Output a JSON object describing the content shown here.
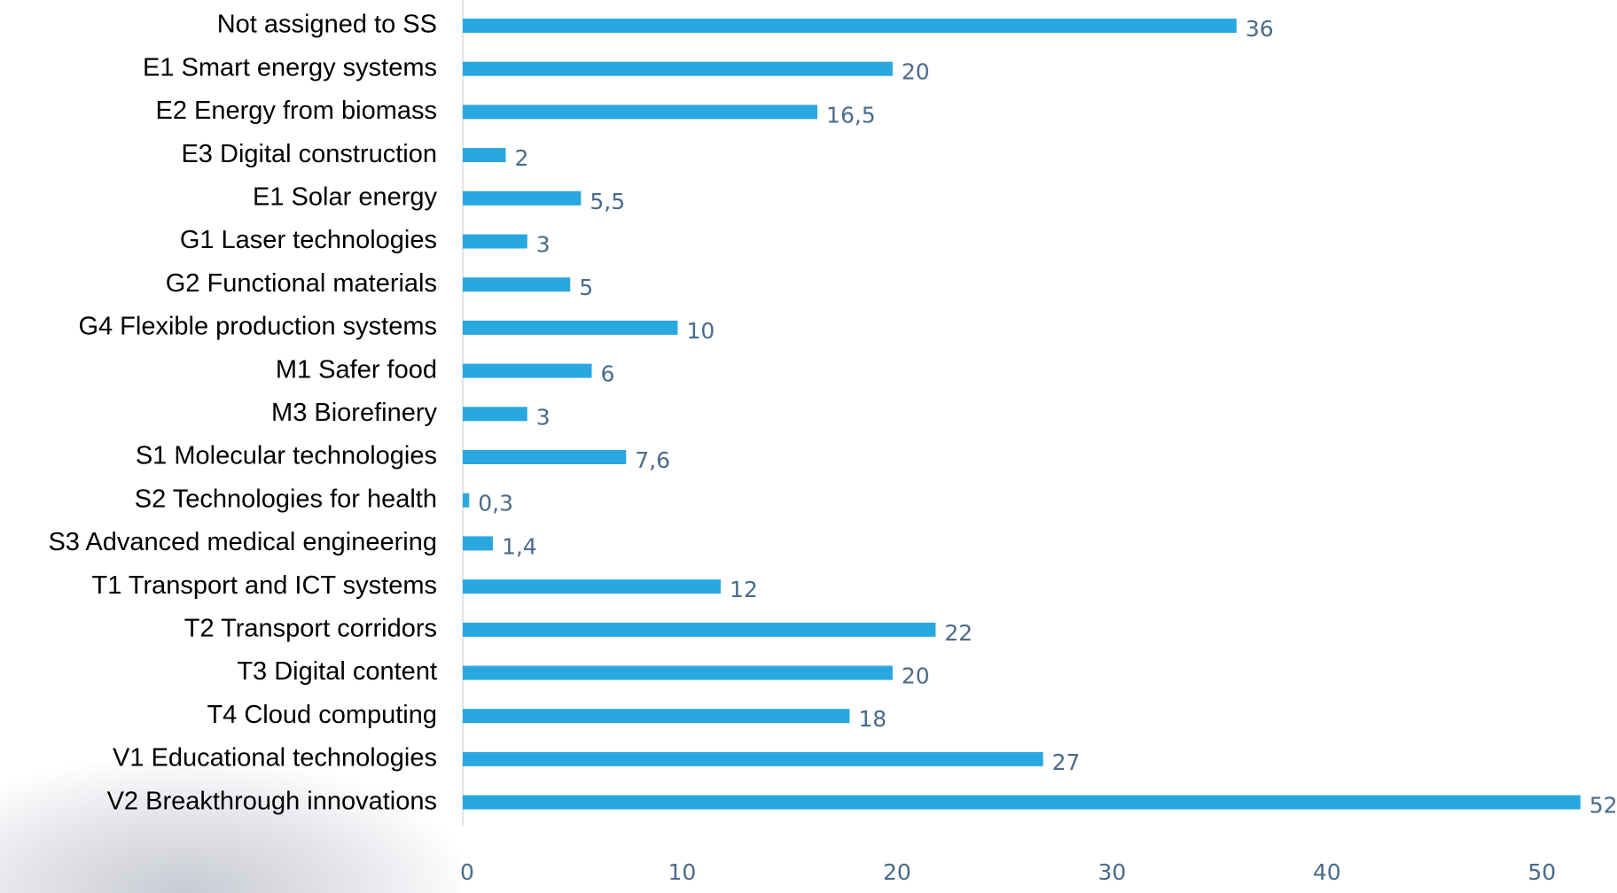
{
  "chart_data": {
    "type": "hbar",
    "categories": [
      "Not assigned to SS",
      "E1 Smart energy systems",
      "E2 Energy from biomass",
      "E3 Digital construction",
      "E1 Solar energy",
      "G1 Laser technologies",
      "G2 Functional materials",
      "G4 Flexible production systems",
      "M1 Safer food",
      "M3 Biorefinery",
      "S1 Molecular technologies",
      "S2 Technologies for health",
      "S3 Advanced medical engineering",
      "T1 Transport and ICT systems",
      "T2 Transport corridors",
      "T3 Digital content",
      "T4 Cloud computing",
      "V1 Educational technologies",
      "V2 Breakthrough innovations"
    ],
    "values": [
      36,
      20,
      16.5,
      2,
      5.5,
      3,
      5,
      10,
      6,
      3,
      7.6,
      0.3,
      1.4,
      12,
      22,
      20,
      18,
      27,
      52
    ],
    "value_labels": [
      "36",
      "20",
      "16,5",
      "2",
      "5,5",
      "3",
      "5",
      "10",
      "6",
      "3",
      "7,6",
      "0,3",
      "1,4",
      "12",
      "22",
      "20",
      "18",
      "27",
      "52"
    ],
    "color": "#29a8e0",
    "xlim": [
      0,
      53
    ],
    "xticks": [
      0,
      10,
      20,
      30,
      40,
      50
    ],
    "grid": false
  }
}
